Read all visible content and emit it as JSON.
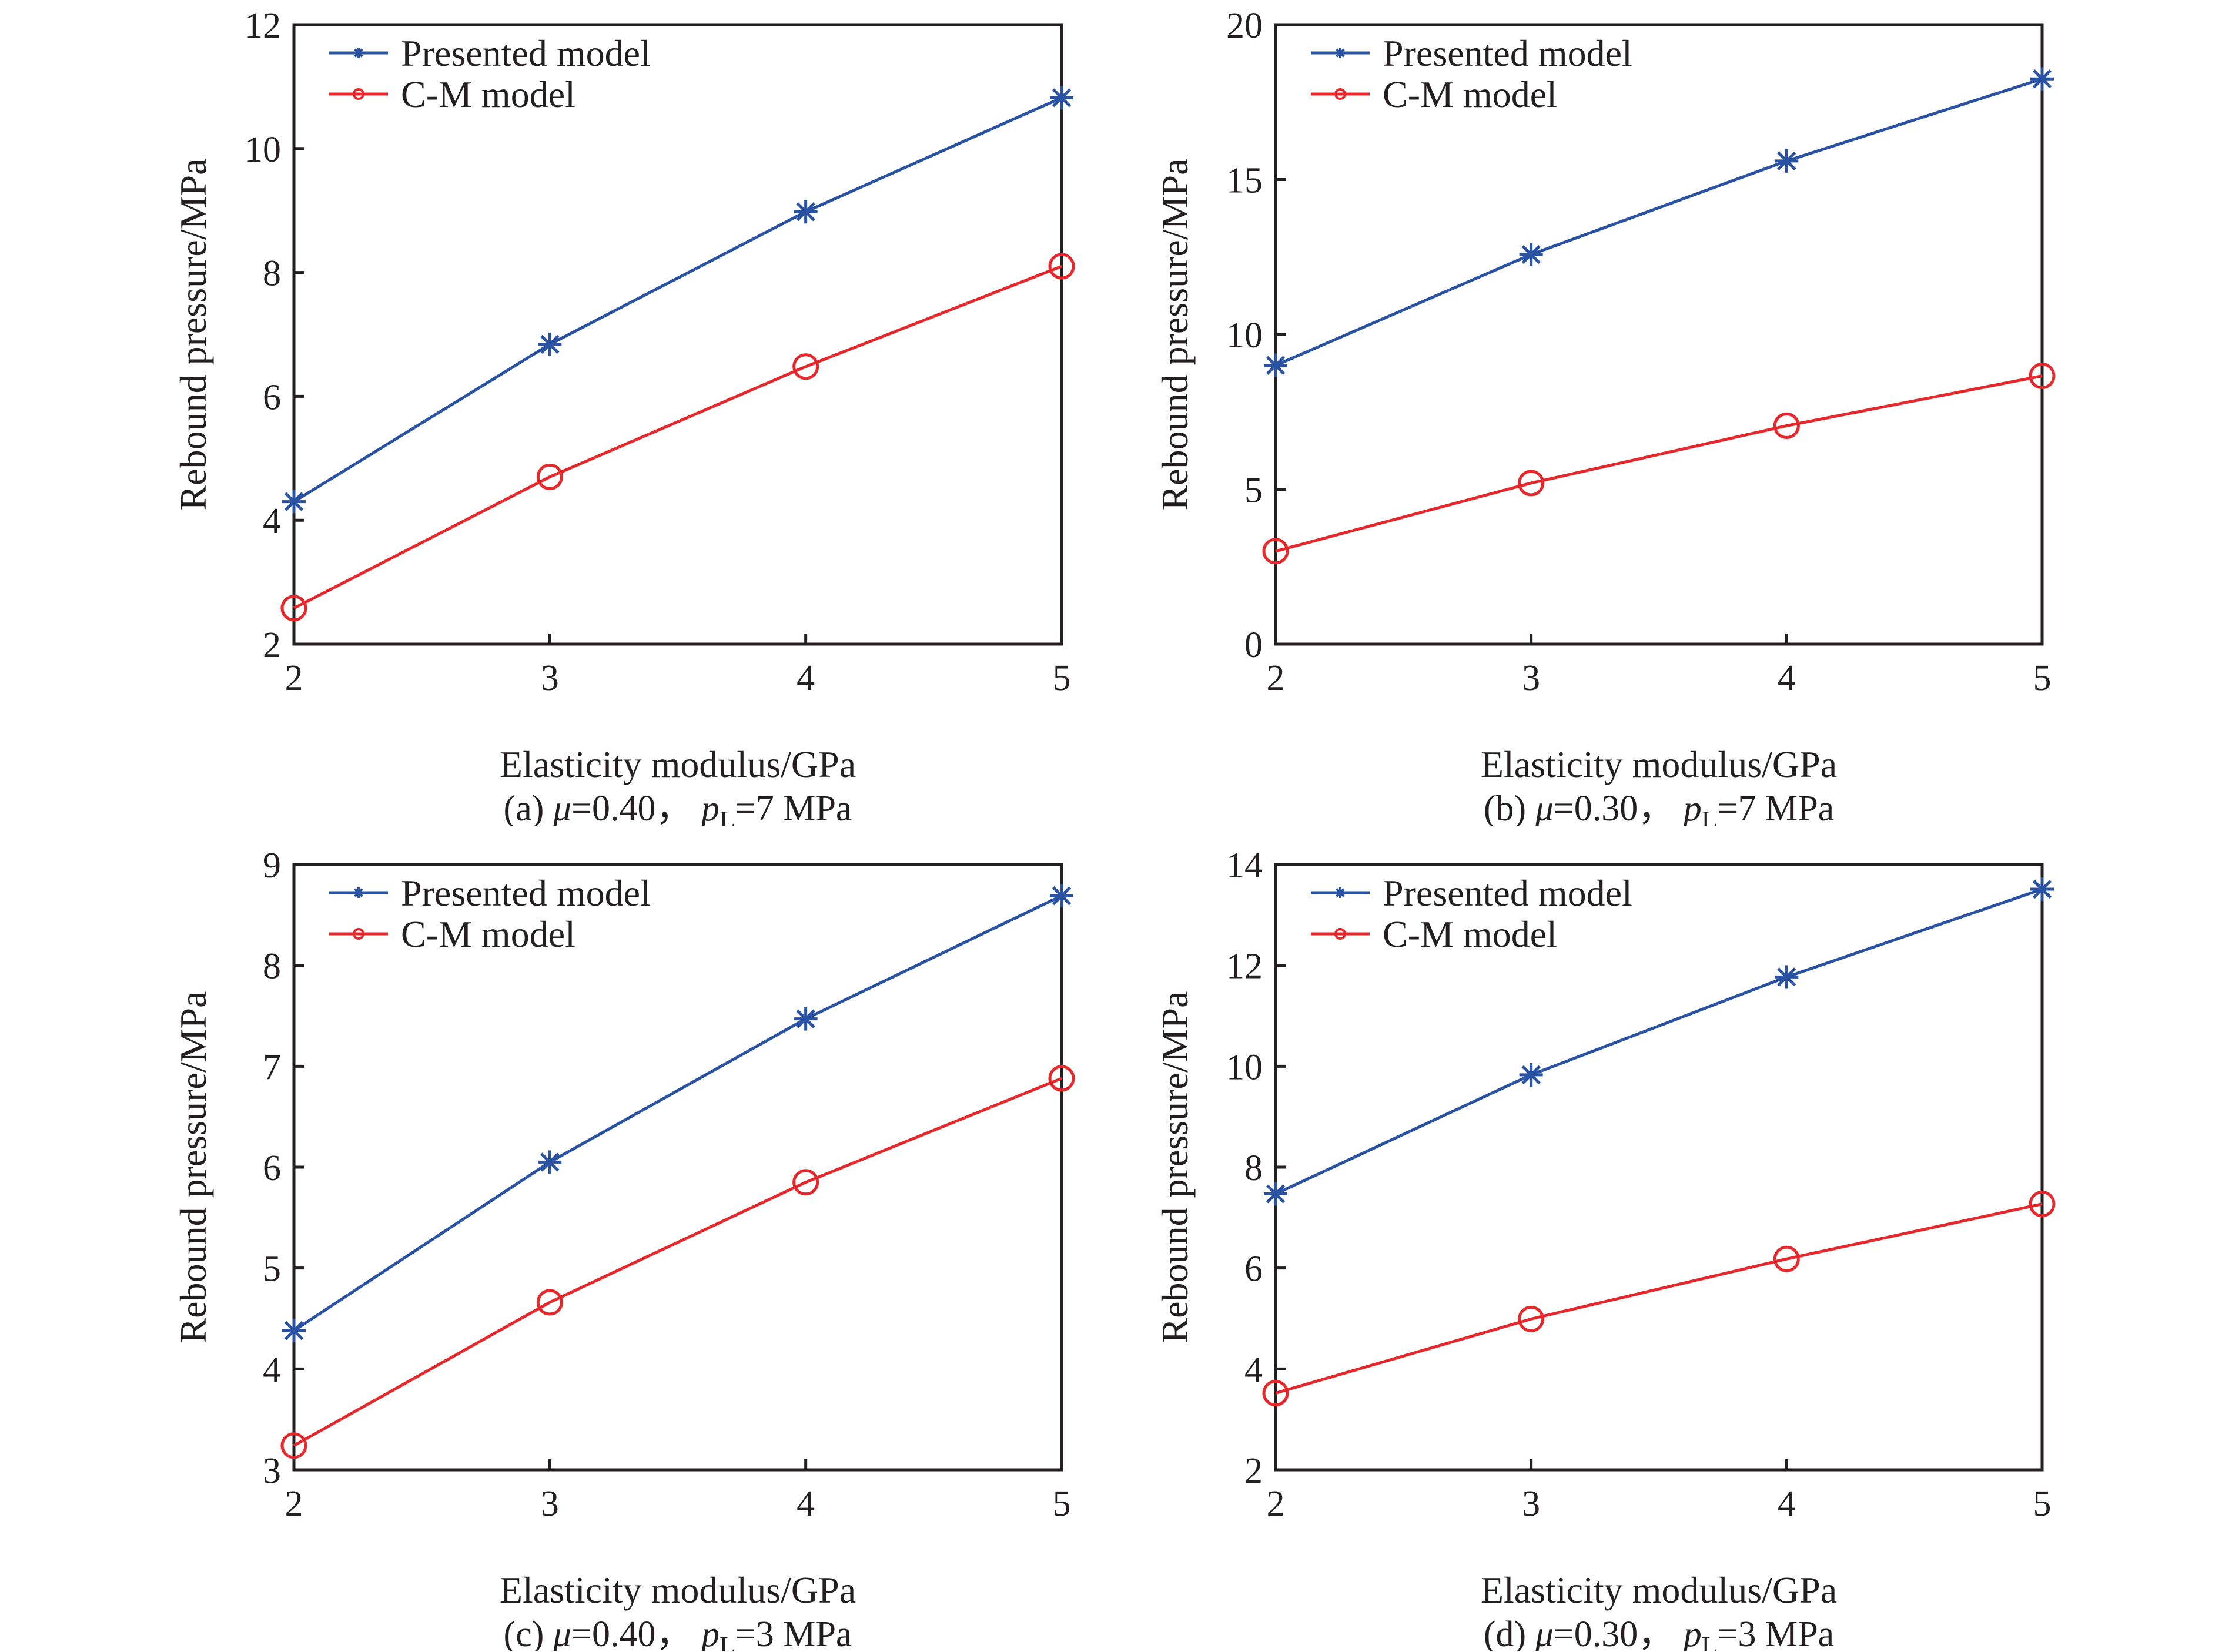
{
  "figure": {
    "legend_entries": [
      "Presented model",
      "C-M model"
    ],
    "colors": {
      "presented": "#2a52a3",
      "cm": "#e5282b",
      "axis": "#231f20"
    }
  },
  "chart_data": [
    {
      "type": "line",
      "panel": "a",
      "caption": {
        "prefix": "(a) ",
        "mu_symbol": "μ",
        "mu_value": "=0.40，",
        "p_symbol": "p",
        "p_sub": "L",
        "p_value": "=7 MPa"
      },
      "xlabel": "Elasticity modulus/GPa",
      "ylabel": "Rebound pressure/MPa",
      "x": [
        2,
        3,
        4,
        5
      ],
      "xlim": [
        2,
        5
      ],
      "ylim": [
        2,
        12
      ],
      "xticks": [
        2,
        3,
        4,
        5
      ],
      "yticks": [
        2,
        4,
        6,
        8,
        10,
        12
      ],
      "grid": false,
      "legend_position": "top-left",
      "series": [
        {
          "name": "Presented model",
          "marker": "asterisk",
          "color": "#2a52a3",
          "values": [
            4.3,
            6.84,
            8.98,
            10.82
          ]
        },
        {
          "name": "C-M model",
          "marker": "circle",
          "color": "#e5282b",
          "values": [
            2.58,
            4.7,
            6.48,
            8.1
          ]
        }
      ]
    },
    {
      "type": "line",
      "panel": "b",
      "caption": {
        "prefix": "(b) ",
        "mu_symbol": "μ",
        "mu_value": "=0.30，",
        "p_symbol": "p",
        "p_sub": "L",
        "p_value": "=7 MPa"
      },
      "xlabel": "Elasticity modulus/GPa",
      "ylabel": "Rebound pressure/MPa",
      "x": [
        2,
        3,
        4,
        5
      ],
      "xlim": [
        2,
        5
      ],
      "ylim": [
        0,
        20
      ],
      "xticks": [
        2,
        3,
        4,
        5
      ],
      "yticks": [
        0,
        5,
        10,
        15,
        20
      ],
      "grid": false,
      "legend_position": "top-left",
      "series": [
        {
          "name": "Presented model",
          "marker": "asterisk",
          "color": "#2a52a3",
          "values": [
            9.0,
            12.58,
            15.6,
            18.25
          ]
        },
        {
          "name": "C-M model",
          "marker": "circle",
          "color": "#e5282b",
          "values": [
            3.0,
            5.2,
            7.05,
            8.66
          ]
        }
      ]
    },
    {
      "type": "line",
      "panel": "c",
      "caption": {
        "prefix": "(c) ",
        "mu_symbol": "μ",
        "mu_value": "=0.40，",
        "p_symbol": "p",
        "p_sub": "L",
        "p_value": "=3 MPa"
      },
      "xlabel": "Elasticity modulus/GPa",
      "ylabel": "Rebound pressure/MPa",
      "x": [
        2,
        3,
        4,
        5
      ],
      "xlim": [
        2,
        5
      ],
      "ylim": [
        3,
        9
      ],
      "xticks": [
        2,
        3,
        4,
        5
      ],
      "yticks": [
        3,
        4,
        5,
        6,
        7,
        8,
        9
      ],
      "grid": false,
      "legend_position": "top-left",
      "series": [
        {
          "name": "Presented model",
          "marker": "asterisk",
          "color": "#2a52a3",
          "values": [
            4.38,
            6.05,
            7.47,
            8.69
          ]
        },
        {
          "name": "C-M model",
          "marker": "circle",
          "color": "#e5282b",
          "values": [
            3.24,
            4.66,
            5.85,
            6.88
          ]
        }
      ]
    },
    {
      "type": "line",
      "panel": "d",
      "caption": {
        "prefix": "(d) ",
        "mu_symbol": "μ",
        "mu_value": "=0.30，",
        "p_symbol": "p",
        "p_sub": "L",
        "p_value": "=3 MPa"
      },
      "xlabel": "Elasticity modulus/GPa",
      "ylabel": "Rebound pressure/MPa",
      "x": [
        2,
        3,
        4,
        5
      ],
      "xlim": [
        2,
        5
      ],
      "ylim": [
        2,
        14
      ],
      "xticks": [
        2,
        3,
        4,
        5
      ],
      "yticks": [
        2,
        4,
        6,
        8,
        10,
        12,
        14
      ],
      "grid": false,
      "legend_position": "top-left",
      "series": [
        {
          "name": "Presented model",
          "marker": "asterisk",
          "color": "#2a52a3",
          "values": [
            7.47,
            9.83,
            11.77,
            13.51
          ]
        },
        {
          "name": "C-M model",
          "marker": "circle",
          "color": "#e5282b",
          "values": [
            3.52,
            4.99,
            6.18,
            7.27
          ]
        }
      ]
    }
  ]
}
